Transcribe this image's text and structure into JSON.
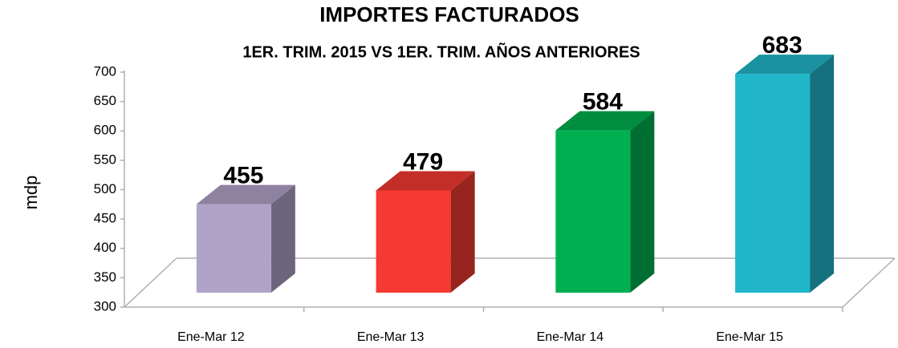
{
  "chart_data": {
    "type": "bar3d",
    "title": "IMPORTES FACTURADOS",
    "subtitle": "1ER. TRIM. 2015 VS 1ER. TRIM. AÑOS ANTERIORES",
    "ylabel": "mdp",
    "categories": [
      "Ene-Mar 12",
      "Ene-Mar 13",
      "Ene-Mar 14",
      "Ene-Mar 15"
    ],
    "values": [
      455,
      479,
      584,
      683
    ],
    "colors": [
      "#b0a3c8",
      "#f43a32",
      "#00b050",
      "#21b6c9"
    ],
    "ylim": [
      300,
      700
    ],
    "yticks": [
      300,
      350,
      400,
      450,
      500,
      550,
      600,
      650,
      700
    ]
  }
}
